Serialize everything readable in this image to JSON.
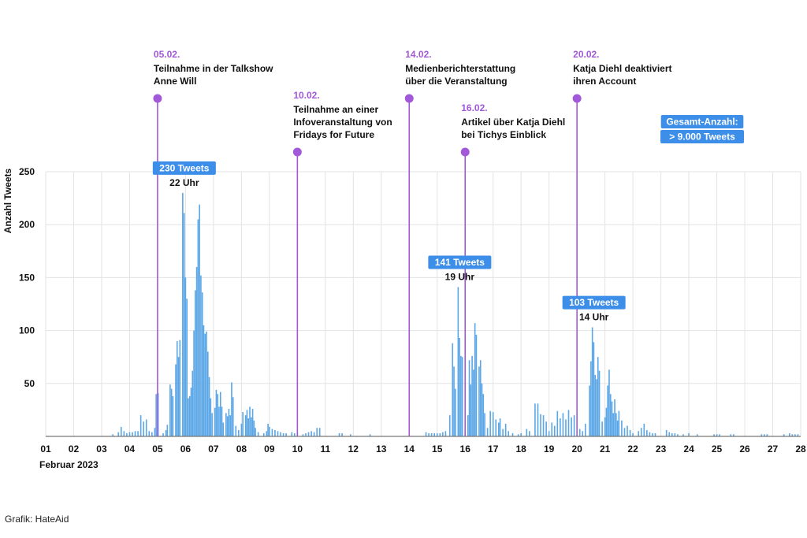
{
  "chart_data": {
    "type": "bar",
    "ylabel": "Anzahl Tweets",
    "xlabel": "Februar 2023",
    "ylim": [
      0,
      250
    ],
    "yticks": [
      50,
      100,
      150,
      200,
      250
    ],
    "xticks": [
      "01",
      "02",
      "03",
      "04",
      "05",
      "06",
      "07",
      "08",
      "09",
      "10",
      "11",
      "12",
      "13",
      "14",
      "15",
      "16",
      "17",
      "18",
      "19",
      "20",
      "21",
      "22",
      "23",
      "24",
      "25",
      "26",
      "27",
      "28"
    ],
    "x_unit": "day of February 2023 (hourly bars)",
    "bar_color": "#5aa6e6",
    "grid": true,
    "values": [
      [
        3.4,
        2
      ],
      [
        3.6,
        4
      ],
      [
        3.7,
        9
      ],
      [
        3.8,
        5
      ],
      [
        3.9,
        3
      ],
      [
        4.0,
        4
      ],
      [
        4.1,
        4
      ],
      [
        4.2,
        5
      ],
      [
        4.3,
        5
      ],
      [
        4.4,
        20
      ],
      [
        4.5,
        14
      ],
      [
        4.6,
        16
      ],
      [
        4.7,
        5
      ],
      [
        4.8,
        4
      ],
      [
        4.9,
        8
      ],
      [
        4.95,
        40
      ],
      [
        5.02,
        41
      ],
      [
        5.2,
        3
      ],
      [
        5.3,
        6
      ],
      [
        5.35,
        11
      ],
      [
        5.45,
        49
      ],
      [
        5.5,
        45
      ],
      [
        5.55,
        38
      ],
      [
        5.65,
        68
      ],
      [
        5.7,
        90
      ],
      [
        5.75,
        75
      ],
      [
        5.8,
        91
      ],
      [
        5.9,
        230
      ],
      [
        5.95,
        211
      ],
      [
        6.0,
        150
      ],
      [
        6.05,
        130
      ],
      [
        6.1,
        36
      ],
      [
        6.15,
        38
      ],
      [
        6.2,
        46
      ],
      [
        6.25,
        62
      ],
      [
        6.3,
        100
      ],
      [
        6.35,
        138
      ],
      [
        6.4,
        160
      ],
      [
        6.45,
        205
      ],
      [
        6.5,
        219
      ],
      [
        6.55,
        152
      ],
      [
        6.6,
        136
      ],
      [
        6.65,
        105
      ],
      [
        6.7,
        97
      ],
      [
        6.75,
        99
      ],
      [
        6.8,
        80
      ],
      [
        6.85,
        56
      ],
      [
        6.9,
        36
      ],
      [
        6.95,
        22
      ],
      [
        7.05,
        27
      ],
      [
        7.1,
        44
      ],
      [
        7.15,
        40
      ],
      [
        7.2,
        28
      ],
      [
        7.25,
        42
      ],
      [
        7.3,
        28
      ],
      [
        7.35,
        13
      ],
      [
        7.45,
        22
      ],
      [
        7.5,
        19
      ],
      [
        7.55,
        26
      ],
      [
        7.6,
        20
      ],
      [
        7.65,
        51
      ],
      [
        7.7,
        37
      ],
      [
        7.8,
        10
      ],
      [
        7.9,
        6
      ],
      [
        8.0,
        12
      ],
      [
        8.05,
        23
      ],
      [
        8.15,
        20
      ],
      [
        8.2,
        25
      ],
      [
        8.25,
        17
      ],
      [
        8.3,
        28
      ],
      [
        8.35,
        18
      ],
      [
        8.4,
        26
      ],
      [
        8.45,
        15
      ],
      [
        8.5,
        8
      ],
      [
        8.6,
        4
      ],
      [
        8.8,
        3
      ],
      [
        8.9,
        5
      ],
      [
        8.95,
        12
      ],
      [
        9.0,
        9
      ],
      [
        9.1,
        7
      ],
      [
        9.2,
        6
      ],
      [
        9.3,
        5
      ],
      [
        9.4,
        4
      ],
      [
        9.5,
        3
      ],
      [
        9.6,
        3
      ],
      [
        9.8,
        4
      ],
      [
        9.9,
        3
      ],
      [
        10.0,
        4
      ],
      [
        10.2,
        2
      ],
      [
        10.3,
        3
      ],
      [
        10.4,
        4
      ],
      [
        10.5,
        5
      ],
      [
        10.6,
        4
      ],
      [
        10.7,
        8
      ],
      [
        10.8,
        8
      ],
      [
        11.5,
        3
      ],
      [
        11.6,
        3
      ],
      [
        11.9,
        2
      ],
      [
        12.6,
        2
      ],
      [
        14.6,
        4
      ],
      [
        14.7,
        3
      ],
      [
        14.8,
        3
      ],
      [
        14.9,
        3
      ],
      [
        15.0,
        3
      ],
      [
        15.1,
        3
      ],
      [
        15.2,
        4
      ],
      [
        15.3,
        5
      ],
      [
        15.45,
        20
      ],
      [
        15.55,
        88
      ],
      [
        15.6,
        66
      ],
      [
        15.65,
        45
      ],
      [
        15.75,
        141
      ],
      [
        15.8,
        93
      ],
      [
        15.85,
        76
      ],
      [
        15.9,
        75
      ],
      [
        16.0,
        6
      ],
      [
        16.1,
        20
      ],
      [
        16.15,
        72
      ],
      [
        16.2,
        49
      ],
      [
        16.25,
        76
      ],
      [
        16.3,
        63
      ],
      [
        16.35,
        107
      ],
      [
        16.4,
        96
      ],
      [
        16.5,
        66
      ],
      [
        16.55,
        72
      ],
      [
        16.6,
        50
      ],
      [
        16.65,
        40
      ],
      [
        16.7,
        22
      ],
      [
        16.8,
        8
      ],
      [
        16.9,
        24
      ],
      [
        17.0,
        23
      ],
      [
        17.1,
        16
      ],
      [
        17.2,
        13
      ],
      [
        17.25,
        17
      ],
      [
        17.35,
        7
      ],
      [
        17.45,
        12
      ],
      [
        17.55,
        5
      ],
      [
        17.7,
        3
      ],
      [
        17.9,
        2
      ],
      [
        18.0,
        3
      ],
      [
        18.2,
        7
      ],
      [
        18.3,
        5
      ],
      [
        18.5,
        31
      ],
      [
        18.6,
        31
      ],
      [
        18.7,
        21
      ],
      [
        18.8,
        20
      ],
      [
        18.9,
        14
      ],
      [
        19.0,
        5
      ],
      [
        19.1,
        13
      ],
      [
        19.2,
        10
      ],
      [
        19.3,
        24
      ],
      [
        19.4,
        17
      ],
      [
        19.5,
        22
      ],
      [
        19.6,
        16
      ],
      [
        19.7,
        25
      ],
      [
        19.8,
        18
      ],
      [
        19.9,
        20
      ],
      [
        20.1,
        7
      ],
      [
        20.2,
        5
      ],
      [
        20.3,
        12
      ],
      [
        20.45,
        48
      ],
      [
        20.5,
        71
      ],
      [
        20.55,
        103
      ],
      [
        20.6,
        89
      ],
      [
        20.65,
        58
      ],
      [
        20.7,
        54
      ],
      [
        20.75,
        75
      ],
      [
        20.8,
        62
      ],
      [
        20.9,
        14
      ],
      [
        21.0,
        18
      ],
      [
        21.05,
        27
      ],
      [
        21.1,
        48
      ],
      [
        21.15,
        63
      ],
      [
        21.2,
        40
      ],
      [
        21.25,
        33
      ],
      [
        21.3,
        22
      ],
      [
        21.35,
        35
      ],
      [
        21.4,
        22
      ],
      [
        21.45,
        15
      ],
      [
        21.5,
        24
      ],
      [
        21.6,
        15
      ],
      [
        21.7,
        8
      ],
      [
        21.8,
        10
      ],
      [
        21.9,
        6
      ],
      [
        22.0,
        3
      ],
      [
        22.2,
        5
      ],
      [
        22.3,
        8
      ],
      [
        22.4,
        12
      ],
      [
        22.5,
        6
      ],
      [
        22.6,
        4
      ],
      [
        22.7,
        3
      ],
      [
        22.8,
        3
      ],
      [
        23.2,
        6
      ],
      [
        23.3,
        4
      ],
      [
        23.4,
        3
      ],
      [
        23.5,
        3
      ],
      [
        23.6,
        2
      ],
      [
        23.8,
        2
      ],
      [
        24.0,
        3
      ],
      [
        24.3,
        2
      ],
      [
        24.9,
        2
      ],
      [
        25.0,
        2
      ],
      [
        25.1,
        2
      ],
      [
        25.5,
        2
      ],
      [
        25.6,
        2
      ],
      [
        26.6,
        2
      ],
      [
        26.7,
        2
      ],
      [
        26.8,
        2
      ],
      [
        27.4,
        2
      ],
      [
        27.6,
        3
      ],
      [
        27.7,
        2
      ],
      [
        27.8,
        2
      ],
      [
        27.9,
        2
      ]
    ],
    "events": [
      {
        "x": 5.0,
        "date": "05.02.",
        "line1": "Teilnahme in der Talkshow",
        "line2": "Anne Will",
        "line3": ""
      },
      {
        "x": 10.0,
        "date": "10.02.",
        "line1": "Teilnahme an einer",
        "line2": "Infoveranstaltung von",
        "line3": "Fridays for Future"
      },
      {
        "x": 14.0,
        "date": "14.02.",
        "line1": "Medienberichterstattung",
        "line2": "über die Veranstaltung",
        "line3": ""
      },
      {
        "x": 16.0,
        "date": "16.02.",
        "line1": "Artikel über Katja Diehl",
        "line2": "bei Tichys Einblick",
        "line3": ""
      },
      {
        "x": 20.0,
        "date": "20.02.",
        "line1": "Katja Diehl deaktiviert",
        "line2": "ihren Account",
        "line3": ""
      }
    ],
    "peaks": [
      {
        "x": 5.9,
        "y": 230,
        "label": "230 Tweets",
        "time": "22 Uhr"
      },
      {
        "x": 15.75,
        "y": 141,
        "label": "141 Tweets",
        "time": "19 Uhr"
      },
      {
        "x": 20.55,
        "y": 103,
        "label": "103 Tweets",
        "time": "14 Uhr"
      }
    ],
    "total": {
      "line1": "Gesamt-Anzahl:",
      "line2": "> 9.000 Tweets"
    }
  },
  "source": "Grafik: HateAid",
  "colors": {
    "bar": "#5aa6e6",
    "event": "#a259d9",
    "badge": "#3d8ee8",
    "grid": "#e3e3e3"
  }
}
